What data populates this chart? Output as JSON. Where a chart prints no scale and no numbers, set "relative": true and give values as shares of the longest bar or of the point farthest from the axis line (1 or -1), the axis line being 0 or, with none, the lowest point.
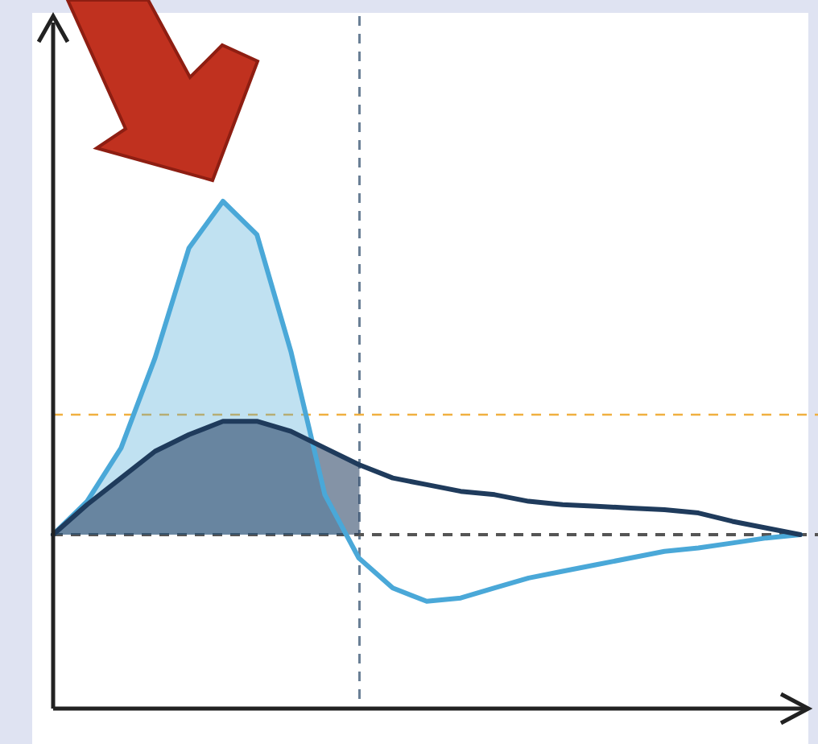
{
  "chart_data": {
    "type": "area",
    "relative": true,
    "categories": [
      null,
      null,
      null,
      null,
      null,
      null,
      null,
      null,
      null,
      null,
      null,
      null,
      null,
      null,
      null,
      null,
      null,
      null,
      null,
      null,
      null,
      null,
      null
    ],
    "series": [
      {
        "color": "#4aa8d8",
        "values": [
          0,
          0.1,
          0.26,
          0.53,
          0.86,
          1,
          0.9,
          0.55,
          0.12,
          -0.07,
          -0.16,
          -0.2,
          -0.19,
          -0.16,
          -0.13,
          -0.11,
          -0.09,
          -0.07,
          -0.05,
          -0.04,
          -0.025,
          -0.01,
          0
        ]
      },
      {
        "color": "#1f3b5c",
        "values": [
          0,
          0.09,
          0.17,
          0.25,
          0.3,
          0.34,
          0.34,
          0.31,
          0.26,
          0.21,
          0.17,
          0.15,
          0.13,
          0.12,
          0.1,
          0.09,
          0.085,
          0.08,
          0.075,
          0.065,
          0.04,
          0.02,
          0
        ]
      }
    ],
    "ref_lines": [
      {
        "axis": "y",
        "value": 0,
        "color": "#555555",
        "line_style": "dashed"
      },
      {
        "axis": "y",
        "value": 0.36,
        "color": "#f0b040",
        "line_style": "dashed"
      }
    ]
  }
}
